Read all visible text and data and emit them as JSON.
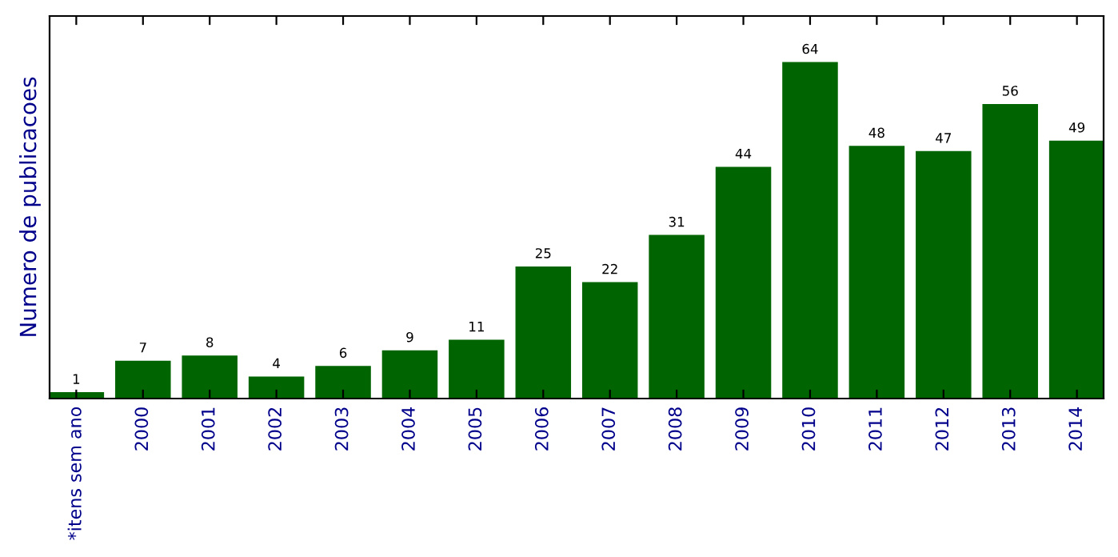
{
  "chart_data": {
    "type": "bar",
    "ylabel": "Numero de publicacoes",
    "categories": [
      "*itens sem ano",
      "2000",
      "2001",
      "2002",
      "2003",
      "2004",
      "2005",
      "2006",
      "2007",
      "2008",
      "2009",
      "2010",
      "2011",
      "2012",
      "2013",
      "2014"
    ],
    "values": [
      1,
      7,
      8,
      4,
      6,
      9,
      11,
      25,
      22,
      31,
      44,
      64,
      48,
      47,
      56,
      49
    ],
    "color": "#006400",
    "ylim": [
      0,
      73
    ],
    "data_labels": true,
    "tick_labels": "x",
    "grid": false,
    "legend": false
  }
}
